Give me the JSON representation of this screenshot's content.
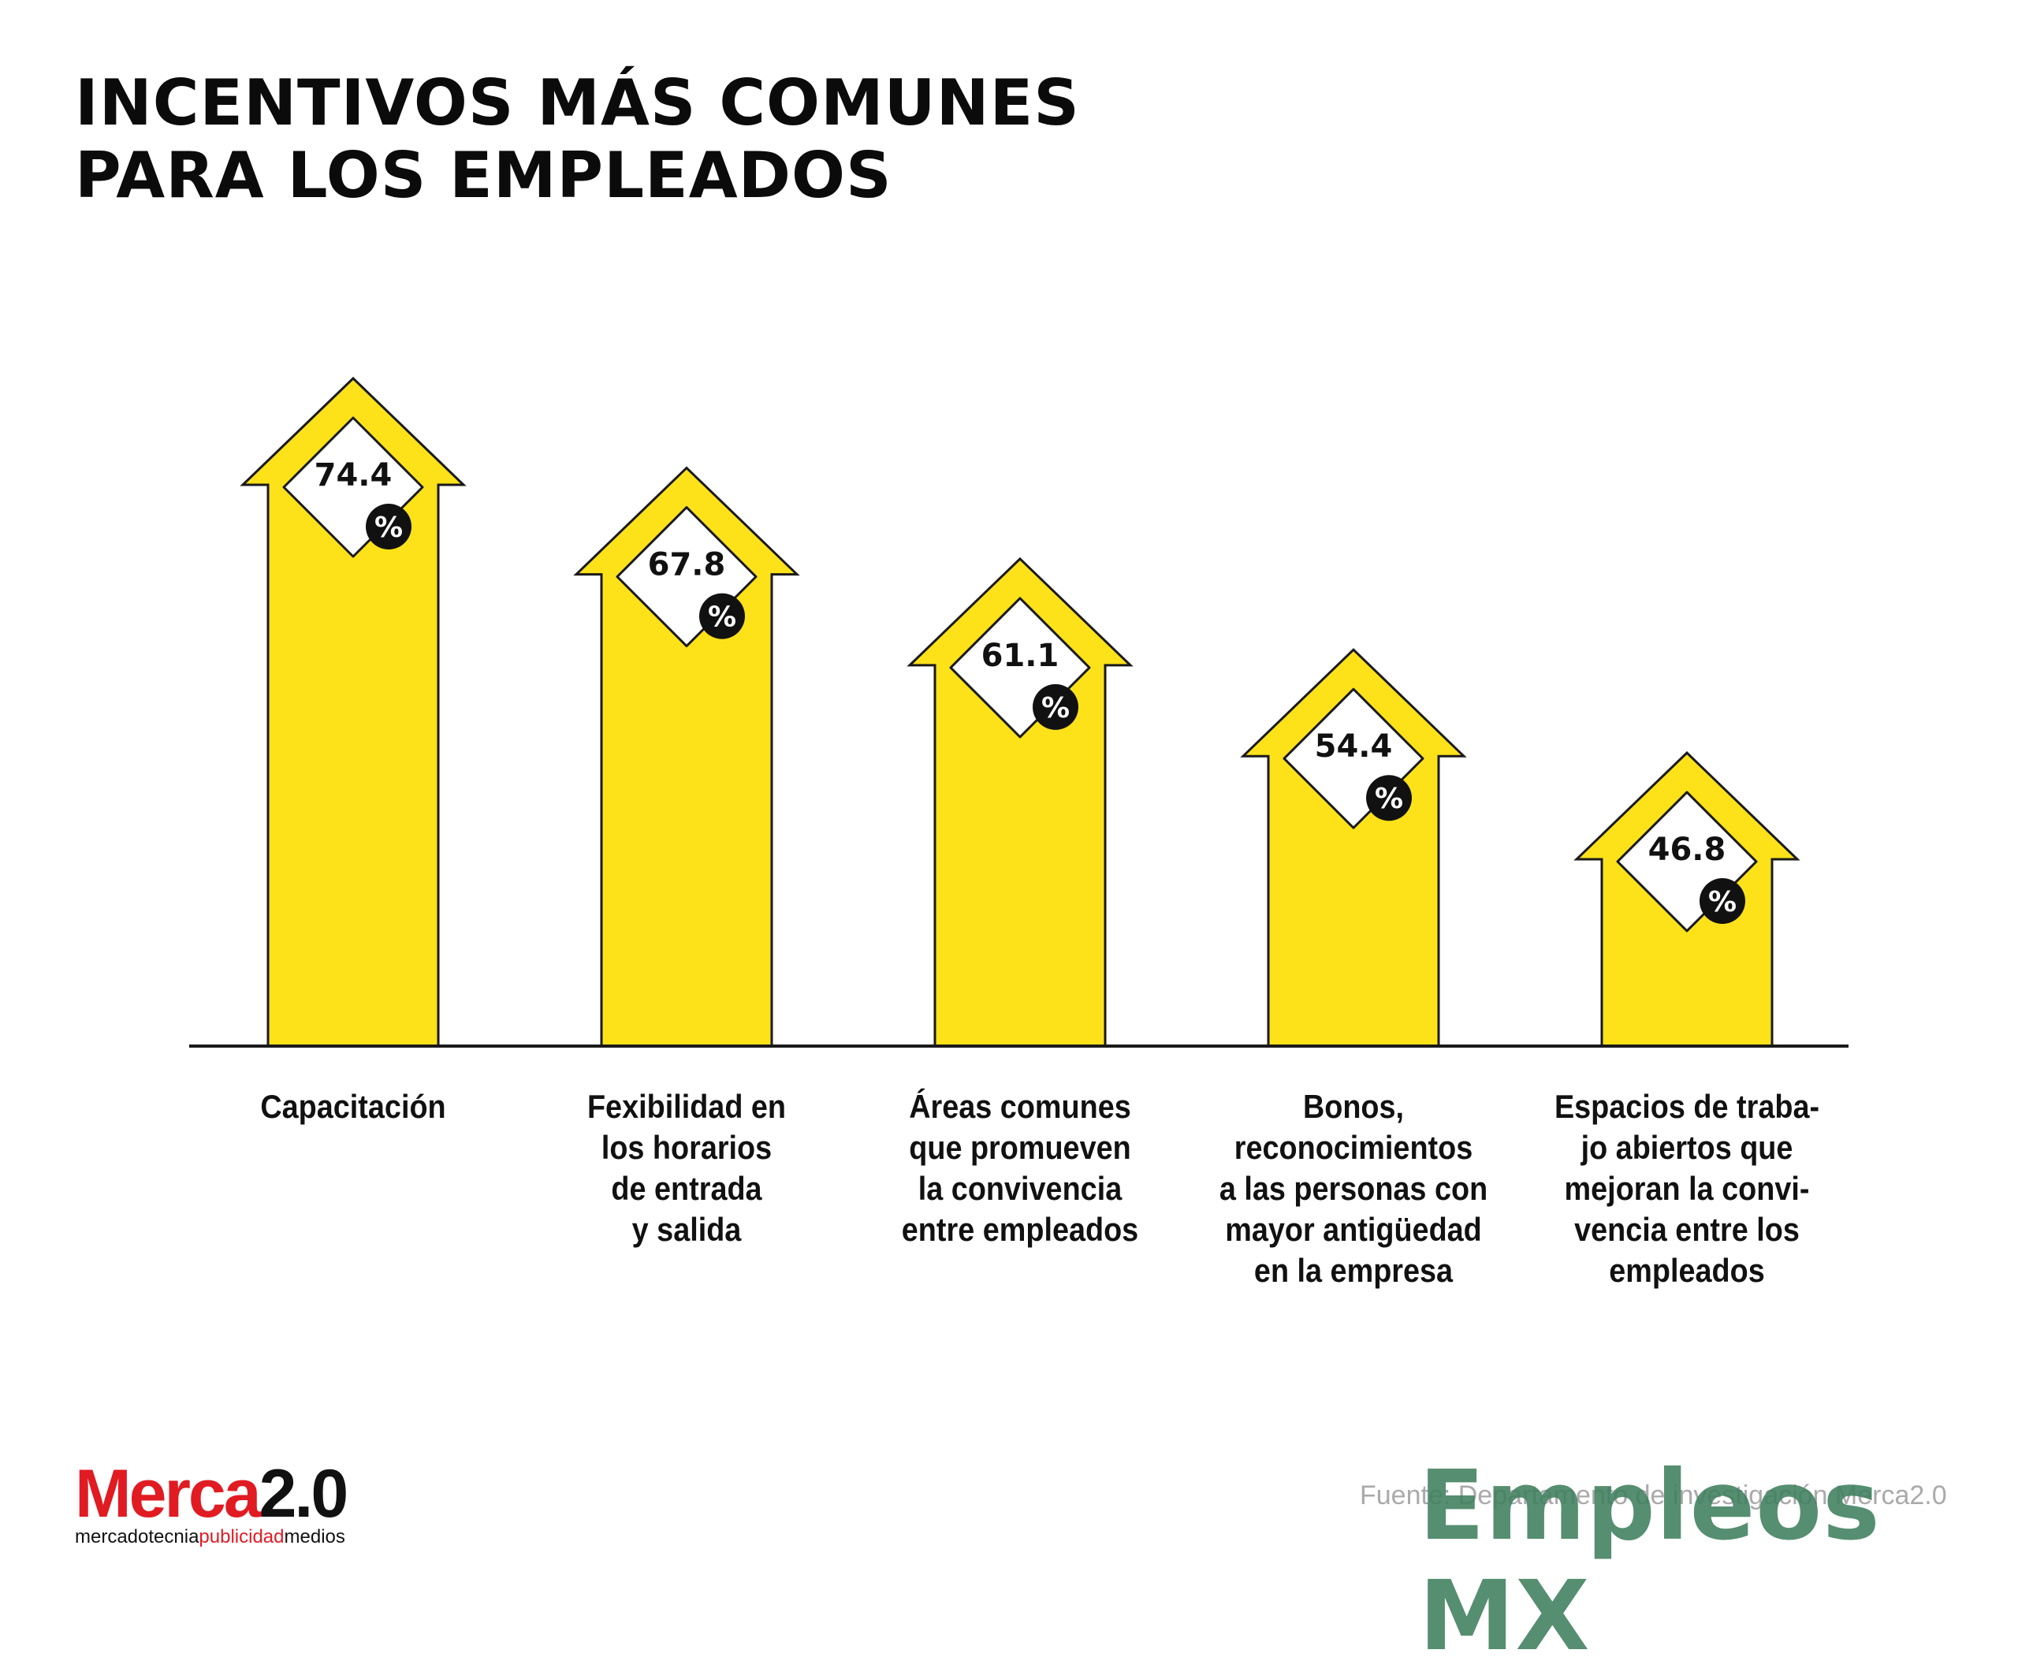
{
  "title_lines": [
    "INCENTIVOS MÁS COMUNES",
    "PARA LOS EMPLEADOS"
  ],
  "colors": {
    "bar": "#fde21a",
    "outline": "#1a1a1a",
    "badge": "#111111",
    "text": "#111111"
  },
  "chart_data": {
    "type": "bar",
    "title": "INCENTIVOS MÁS COMUNES PARA LOS EMPLEADOS",
    "unit": "%",
    "ylim": [
      0,
      100
    ],
    "grid": false,
    "categories": [
      "Capacitación",
      "Fexibilidad en los horarios de entrada y salida",
      "Áreas comunes que promueven la convivencia entre empleados",
      "Bonos, reconocimientos a las personas con mayor antigüedad en la empresa",
      "Espacios de trabajo abiertos que mejoran la convivencia entre los empleados"
    ],
    "category_lines": [
      [
        "Capacitación"
      ],
      [
        "Fexibilidad en",
        "los horarios",
        "de entrada",
        "y salida"
      ],
      [
        "Áreas comunes",
        "que promueven",
        "la convivencia",
        "entre empleados"
      ],
      [
        "Bonos,",
        "reconocimientos",
        "a las personas con",
        "mayor antigüedad",
        "en la empresa"
      ],
      [
        "Espacios de traba-",
        "jo abiertos que",
        "mejoran la convi-",
        "vencia entre los",
        "empleados"
      ]
    ],
    "values": [
      74.4,
      67.8,
      61.1,
      54.4,
      46.8
    ],
    "value_labels": [
      "74.4",
      "67.8",
      "61.1",
      "54.4",
      "46.8"
    ]
  },
  "logo": {
    "brand_a": "Merca",
    "brand_b": "2.0",
    "tagline_a": "mercadotecnia",
    "tagline_b": "publicidad",
    "tagline_c": "medios"
  },
  "source_text": "Fuente: Departamento de investigación Merca2.0",
  "watermark_text": "Empleos MX"
}
